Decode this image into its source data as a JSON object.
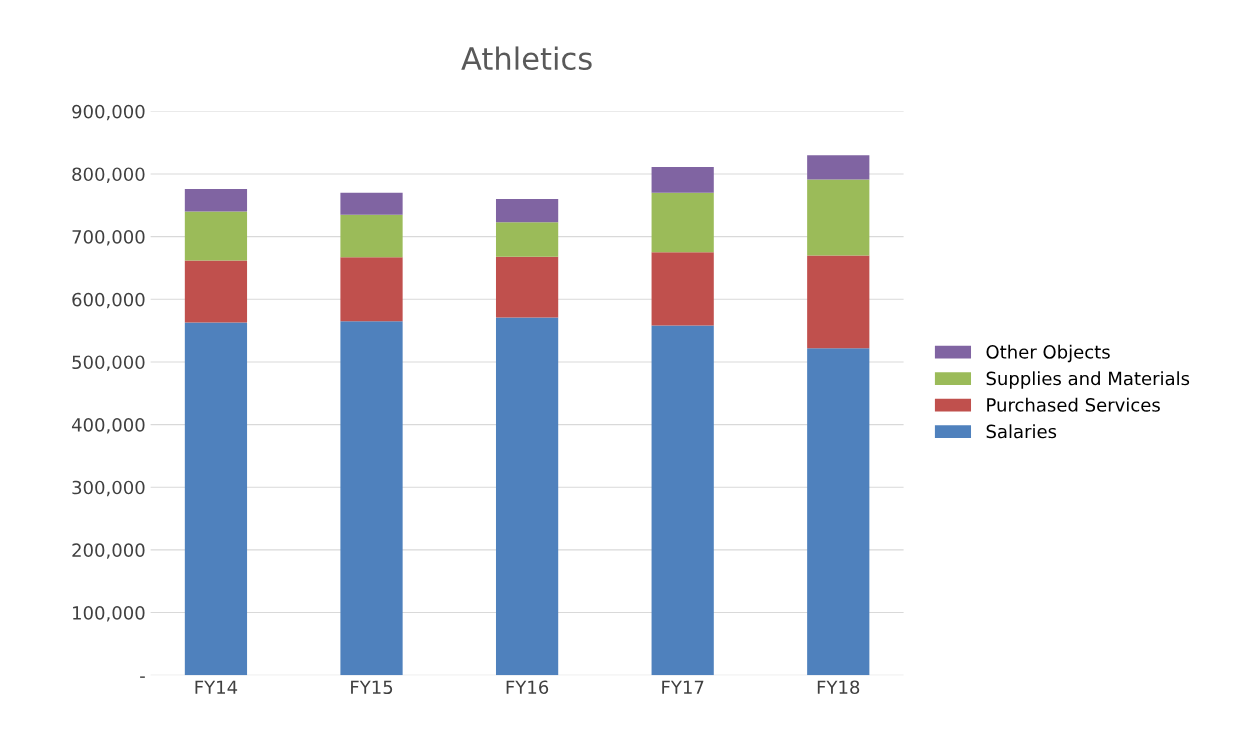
{
  "chart_data": {
    "type": "bar",
    "title": "Athletics",
    "stacked": true,
    "categories": [
      "FY14",
      "FY15",
      "FY16",
      "FY17",
      "FY18"
    ],
    "series": [
      {
        "name": "Salaries",
        "color": "#4f81bd",
        "values": [
          563000,
          565000,
          571000,
          558000,
          522000
        ]
      },
      {
        "name": "Purchased Services",
        "color": "#c0504d",
        "values": [
          99000,
          102000,
          97000,
          117000,
          148000
        ]
      },
      {
        "name": "Supplies and Materials",
        "color": "#9bbb59",
        "values": [
          78000,
          68000,
          55000,
          95000,
          121000
        ]
      },
      {
        "name": "Other Objects",
        "color": "#8064a2",
        "values": [
          36000,
          35000,
          37000,
          41000,
          39000
        ]
      }
    ],
    "ylim": [
      0,
      900000
    ],
    "yticks": [
      {
        "value": 0,
        "label": "-"
      },
      {
        "value": 100000,
        "label": "100,000"
      },
      {
        "value": 200000,
        "label": "200,000"
      },
      {
        "value": 300000,
        "label": "300,000"
      },
      {
        "value": 400000,
        "label": "400,000"
      },
      {
        "value": 500000,
        "label": "500,000"
      },
      {
        "value": 600000,
        "label": "600,000"
      },
      {
        "value": 700000,
        "label": "700,000"
      },
      {
        "value": 800000,
        "label": "800,000"
      },
      {
        "value": 900000,
        "label": "900,000"
      }
    ],
    "grid": "y",
    "legend": "right"
  }
}
